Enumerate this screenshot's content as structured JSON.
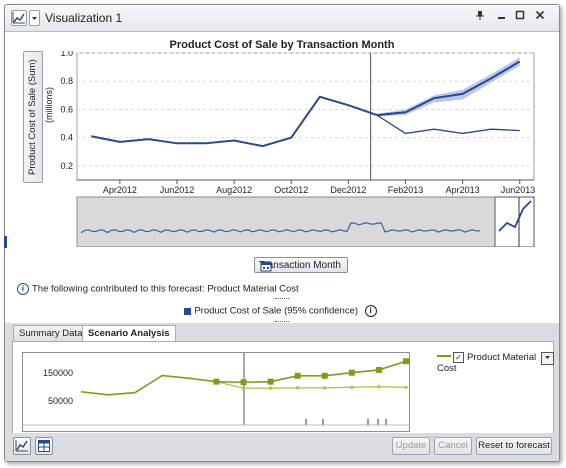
{
  "window": {
    "title": "Visualization 1"
  },
  "chart": {
    "title": "Product Cost of Sale by Transaction Month",
    "y_label": "Product Cost of Sale (Sum)",
    "y_unit": "(millions)",
    "x_axis_button": "Transaction Month"
  },
  "chart_data": [
    {
      "type": "line",
      "title": "Product Cost of Sale by Transaction Month",
      "xlabel": "Transaction Month",
      "ylabel": "Product Cost of Sale (Sum)",
      "ylim": [
        0.1,
        1.0
      ],
      "x_tick_labels": [
        "Apr2012",
        "Jun2012",
        "Aug2012",
        "Oct2012",
        "Dec2012",
        "Feb2013",
        "Apr2013",
        "Jun2013"
      ],
      "y_tick_labels": [
        "0.2",
        "0.4",
        "0.6",
        "0.8",
        "1.0"
      ],
      "x": [
        "Mar2012",
        "Apr2012",
        "May2012",
        "Jun2012",
        "Jul2012",
        "Aug2012",
        "Sep2012",
        "Oct2012",
        "Nov2012",
        "Dec2012",
        "Jan2013",
        "Feb2013",
        "Mar2013",
        "Apr2013",
        "May2013",
        "Jun2013"
      ],
      "series": [
        {
          "name": "Product Cost of Sale",
          "values": [
            0.41,
            0.37,
            0.39,
            0.36,
            0.36,
            0.38,
            0.34,
            0.4,
            0.69,
            0.63,
            0.56,
            null,
            null,
            null,
            null,
            null
          ]
        },
        {
          "values": [
            null,
            null,
            null,
            null,
            null,
            null,
            null,
            null,
            null,
            null,
            0.56,
            0.43,
            0.46,
            0.43,
            0.46,
            0.45
          ]
        },
        {
          "name": "95% confidence",
          "values": [
            null,
            null,
            null,
            null,
            null,
            null,
            null,
            null,
            null,
            null,
            0.56,
            0.58,
            0.68,
            0.71,
            0.82,
            0.94
          ],
          "lower": [
            null,
            null,
            null,
            null,
            null,
            null,
            null,
            null,
            null,
            null,
            0.55,
            0.56,
            0.65,
            0.67,
            0.79,
            0.91
          ],
          "upper": [
            null,
            null,
            null,
            null,
            null,
            null,
            null,
            null,
            null,
            null,
            0.57,
            0.6,
            0.7,
            0.74,
            0.85,
            0.97
          ]
        }
      ]
    },
    {
      "type": "line",
      "title": "",
      "ylim": [
        0,
        200000
      ],
      "y_tick_labels": [
        "150000",
        "50000"
      ],
      "series": [
        {
          "name": "Product Material Cost",
          "values": [
            83000,
            72000,
            80000,
            141000,
            131000,
            119000,
            117000,
            119000,
            140000,
            140000,
            151000,
            161000,
            192000
          ]
        },
        {
          "values": [
            null,
            null,
            null,
            null,
            null,
            119000,
            96000,
            96000,
            97000,
            97000,
            99000,
            101000,
            99000
          ]
        }
      ]
    }
  ],
  "info": {
    "text": "The following contributed to this forecast: Product Material Cost"
  },
  "legend": {
    "label": "Product Cost of Sale (95% confidence)"
  },
  "tabs": [
    {
      "label": "Summary Data"
    },
    {
      "label": "Scenario Analysis"
    }
  ],
  "scenario": {
    "checkbox_label": "Product Material Cost",
    "checked": "✓"
  },
  "buttons": {
    "update": "Update",
    "cancel": "Cancel",
    "reset": "Reset to forecast"
  },
  "colors": {
    "main_line": "#28488f",
    "band": "#8ea3d6",
    "scenario_line": "#7b9e1a",
    "scenario_line_light": "#a8c24a"
  }
}
